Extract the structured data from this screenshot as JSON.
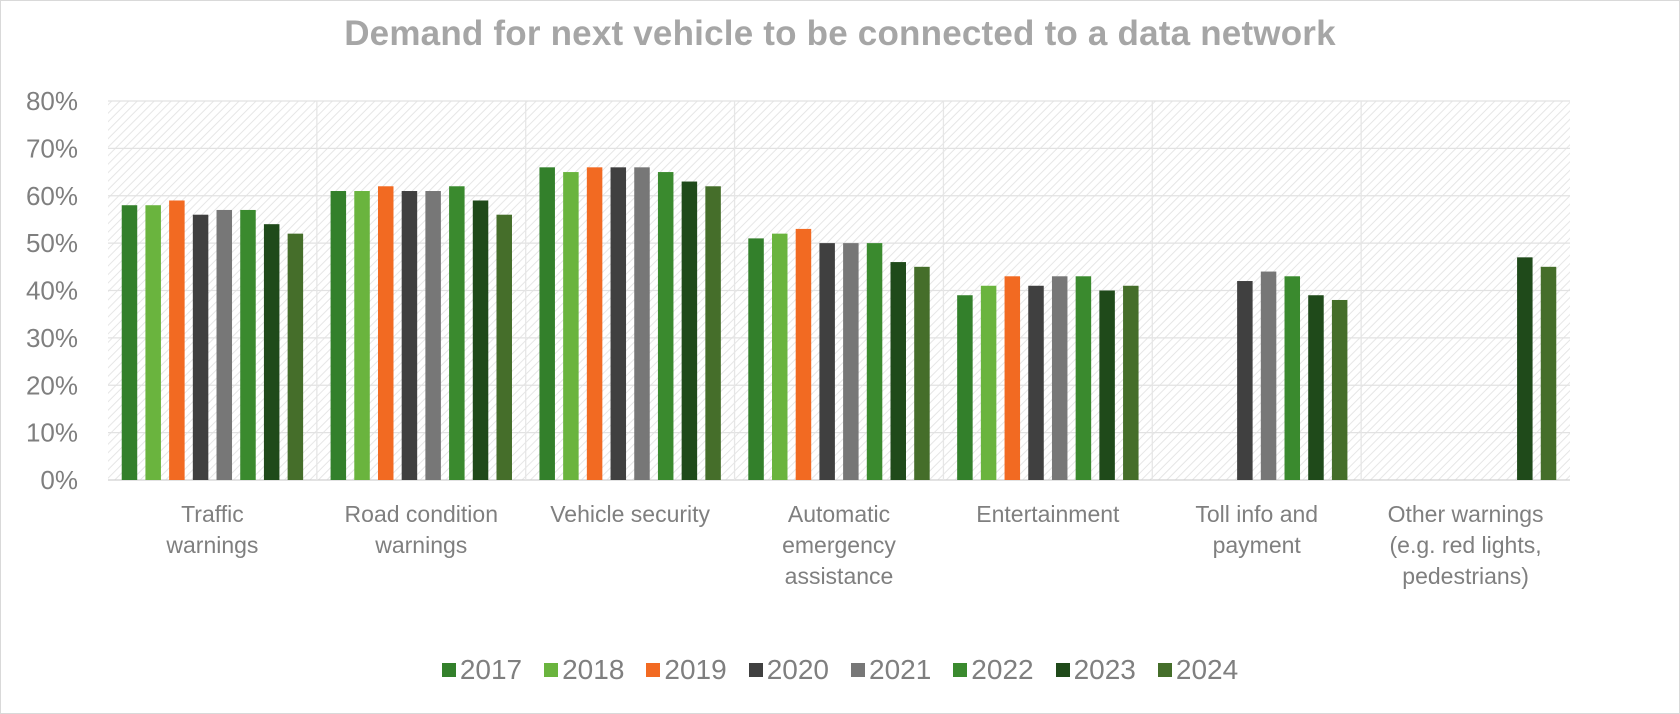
{
  "chart_data": {
    "type": "bar",
    "title": "Demand for next vehicle to be connected to a data network",
    "xlabel": "",
    "ylabel": "",
    "ylim": [
      0,
      80
    ],
    "yticks": [
      "0%",
      "10%",
      "20%",
      "30%",
      "40%",
      "50%",
      "60%",
      "70%",
      "80%"
    ],
    "ytick_values": [
      0,
      10,
      20,
      30,
      40,
      50,
      60,
      70,
      80
    ],
    "grid": true,
    "legend_position": "bottom",
    "categories": [
      [
        "Traffic",
        "warnings"
      ],
      [
        "Road condition",
        "warnings"
      ],
      [
        "Vehicle security"
      ],
      [
        "Automatic",
        "emergency",
        "assistance"
      ],
      [
        "Entertainment"
      ],
      [
        "Toll info and",
        "payment"
      ],
      [
        "Other warnings",
        "(e.g. red lights,",
        "pedestrians)"
      ]
    ],
    "series": [
      {
        "name": "2017",
        "color": "#33802b",
        "values": [
          58,
          61,
          66,
          51,
          39,
          null,
          null
        ]
      },
      {
        "name": "2018",
        "color": "#6ab43e",
        "values": [
          58,
          61,
          65,
          52,
          41,
          null,
          null
        ]
      },
      {
        "name": "2019",
        "color": "#f26a22",
        "values": [
          59,
          62,
          66,
          53,
          43,
          null,
          null
        ]
      },
      {
        "name": "2020",
        "color": "#404040",
        "values": [
          56,
          61,
          66,
          50,
          41,
          42,
          null
        ]
      },
      {
        "name": "2021",
        "color": "#777777",
        "values": [
          57,
          61,
          66,
          50,
          43,
          44,
          null
        ]
      },
      {
        "name": "2022",
        "color": "#3a8a2e",
        "values": [
          57,
          62,
          65,
          50,
          43,
          43,
          null
        ]
      },
      {
        "name": "2023",
        "color": "#1f4a1a",
        "values": [
          54,
          59,
          63,
          46,
          40,
          39,
          47
        ]
      },
      {
        "name": "2024",
        "color": "#456e2a",
        "values": [
          52,
          56,
          62,
          45,
          41,
          38,
          45
        ]
      }
    ]
  }
}
